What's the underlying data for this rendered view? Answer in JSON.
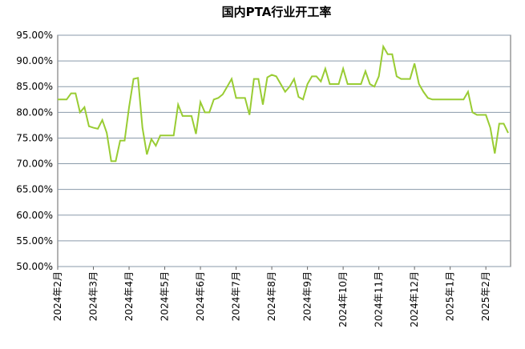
{
  "chart_data": {
    "type": "line",
    "title": "国内PTA行业开工率",
    "categories": [
      "2024年2月",
      null,
      null,
      null,
      null,
      null,
      null,
      null,
      "2024年3月",
      null,
      null,
      null,
      null,
      null,
      null,
      null,
      "2024年4月",
      null,
      null,
      null,
      null,
      null,
      null,
      null,
      "2024年5月",
      null,
      null,
      null,
      null,
      null,
      null,
      null,
      "2024年6月",
      null,
      null,
      null,
      null,
      null,
      null,
      null,
      "2024年7月",
      null,
      null,
      null,
      null,
      null,
      null,
      null,
      "2024年8月",
      null,
      null,
      null,
      null,
      null,
      null,
      null,
      "2024年9月",
      null,
      null,
      null,
      null,
      null,
      null,
      null,
      "2024年10月",
      null,
      null,
      null,
      null,
      null,
      null,
      null,
      "2024年11月",
      null,
      null,
      null,
      null,
      null,
      null,
      null,
      "2024年12月",
      null,
      null,
      null,
      null,
      null,
      null,
      null,
      "2025年1月",
      null,
      null,
      null,
      null,
      null,
      null,
      null,
      "2025年2月",
      null,
      null,
      null,
      null,
      null
    ],
    "series": [
      {
        "color": "#99cc33",
        "values": [
          82.5,
          82.5,
          82.5,
          83.7,
          83.7,
          80,
          81,
          77.3,
          77,
          76.8,
          78.5,
          76,
          70.5,
          70.5,
          74.5,
          74.5,
          81,
          86.5,
          86.7,
          77,
          71.8,
          74.8,
          73.5,
          75.5,
          75.5,
          75.5,
          75.5,
          81.5,
          79.3,
          79.3,
          79.3,
          75.8,
          82,
          80,
          80,
          82.5,
          82.8,
          83.5,
          85,
          86.5,
          82.8,
          82.8,
          82.8,
          79.5,
          86.5,
          86.5,
          81.5,
          86.8,
          87.3,
          87,
          85.5,
          84,
          85,
          86.5,
          83,
          82.5,
          85.5,
          87,
          87,
          86,
          88.5,
          85.5,
          85.5,
          85.5,
          88.5,
          85.5,
          85.5,
          85.5,
          85.5,
          88,
          85.5,
          85,
          87,
          92.8,
          91.3,
          91.3,
          87,
          86.5,
          86.5,
          86.5,
          89.5,
          85.5,
          84,
          82.8,
          82.5,
          82.5,
          82.5,
          82.5,
          82.5,
          82.5,
          82.5,
          82.5,
          84,
          80,
          79.5,
          79.5,
          79.5,
          77,
          72,
          77.8,
          77.8,
          76
        ]
      }
    ],
    "ylim": [
      50,
      95
    ],
    "yticks": [
      {
        "value": 50,
        "label": "50.00%"
      },
      {
        "value": 55,
        "label": "55.00%"
      },
      {
        "value": 60,
        "label": "60.00%"
      },
      {
        "value": 65,
        "label": "65.00%"
      },
      {
        "value": 70,
        "label": "70.00%"
      },
      {
        "value": 75,
        "label": "75.00%"
      },
      {
        "value": 80,
        "label": "80.00%"
      },
      {
        "value": 85,
        "label": "85.00%"
      },
      {
        "value": 90,
        "label": "90.00%"
      },
      {
        "value": 95,
        "label": "95.00%"
      }
    ],
    "grid": true
  }
}
